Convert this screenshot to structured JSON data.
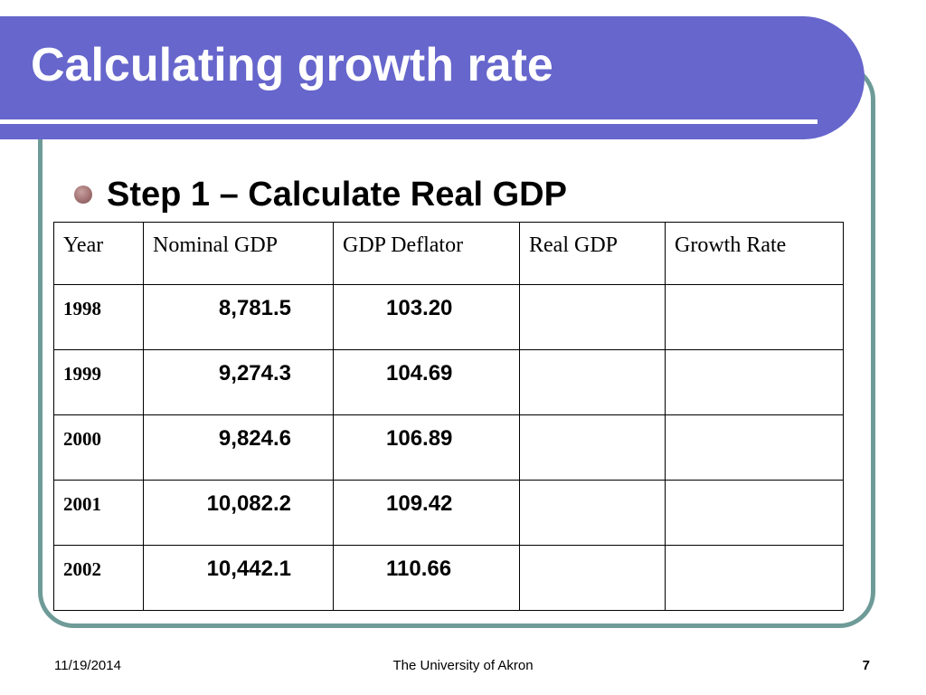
{
  "slide": {
    "title": "Calculating growth rate",
    "bullet": "Step 1 – Calculate Real GDP"
  },
  "table": {
    "headers": [
      "Year",
      "Nominal GDP",
      "GDP Deflator",
      "Real GDP",
      "Growth Rate"
    ],
    "rows": [
      {
        "year": "1998",
        "nominal": "8,781.5",
        "deflator": "103.20",
        "real": "",
        "growth": ""
      },
      {
        "year": "1999",
        "nominal": "9,274.3",
        "deflator": "104.69",
        "real": "",
        "growth": ""
      },
      {
        "year": "2000",
        "nominal": "9,824.6",
        "deflator": "106.89",
        "real": "",
        "growth": ""
      },
      {
        "year": "2001",
        "nominal": "10,082.2",
        "deflator": "109.42",
        "real": "",
        "growth": ""
      },
      {
        "year": "2002",
        "nominal": "10,442.1",
        "deflator": "110.66",
        "real": "",
        "growth": ""
      }
    ]
  },
  "footer": {
    "date": "11/19/2014",
    "center": "The University of Akron",
    "page": "7"
  },
  "colors": {
    "title_band": "#6666cc",
    "frame_border": "#6e9b98",
    "bullet": "#9e6e6e"
  }
}
